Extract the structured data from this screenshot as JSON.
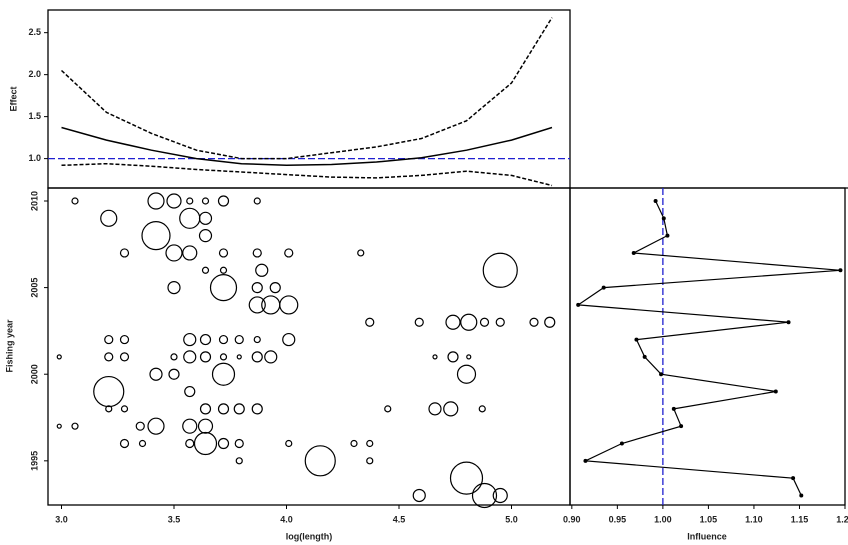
{
  "chart_data": [
    {
      "type": "line",
      "ylabel": "Effect",
      "x": [
        3.0,
        3.2,
        3.4,
        3.6,
        3.8,
        4.0,
        4.2,
        4.4,
        4.6,
        4.8,
        5.0,
        5.18
      ],
      "series": [
        {
          "color": "#000000",
          "dash": false,
          "values": [
            1.37,
            1.22,
            1.1,
            1.0,
            0.94,
            0.92,
            0.93,
            0.96,
            1.01,
            1.1,
            1.22,
            1.37
          ]
        },
        {
          "color": "#000000",
          "dash": true,
          "values": [
            2.05,
            1.55,
            1.3,
            1.1,
            1.0,
            1.0,
            1.07,
            1.14,
            1.24,
            1.45,
            1.9,
            2.68
          ]
        },
        {
          "color": "#000000",
          "dash": true,
          "values": [
            0.92,
            0.94,
            0.91,
            0.87,
            0.84,
            0.81,
            0.78,
            0.77,
            0.8,
            0.85,
            0.8,
            0.68
          ]
        }
      ],
      "hline": {
        "value": 1,
        "color": "#1f1fd0"
      },
      "xlim": [
        2.94,
        5.26
      ],
      "ylim": [
        0.65,
        2.77
      ],
      "yticks": [
        {
          "value": 1,
          "label": "1.0"
        },
        1.5,
        {
          "value": 2,
          "label": "2.0"
        },
        2.5
      ]
    },
    {
      "type": "bubble",
      "xlabel": "log(length)",
      "ylabel": "Fishing year",
      "x": [
        3.06,
        3.42,
        3.5,
        3.57,
        3.64,
        3.72,
        3.87,
        3.21,
        3.57,
        3.64,
        3.42,
        3.64,
        3.28,
        3.5,
        3.57,
        3.72,
        3.87,
        4.01,
        4.33,
        3.64,
        3.72,
        3.89,
        4.95,
        3.5,
        3.72,
        3.87,
        3.95,
        3.87,
        3.93,
        4.01,
        4.37,
        4.59,
        4.74,
        4.81,
        4.88,
        4.95,
        5.1,
        5.17,
        3.21,
        3.28,
        3.57,
        3.64,
        3.72,
        3.79,
        3.87,
        4.01,
        2.99,
        3.21,
        3.28,
        3.5,
        3.57,
        3.64,
        3.72,
        3.79,
        3.87,
        3.93,
        4.66,
        4.74,
        4.81,
        3.42,
        3.5,
        3.72,
        4.8,
        3.21,
        3.57,
        3.21,
        3.28,
        3.64,
        3.72,
        3.79,
        3.87,
        4.45,
        4.66,
        4.73,
        4.87,
        2.99,
        3.06,
        3.35,
        3.42,
        3.57,
        3.64,
        3.28,
        3.36,
        3.57,
        3.64,
        3.72,
        3.79,
        4.01,
        4.3,
        4.37,
        3.79,
        4.15,
        4.37,
        4.8,
        4.59,
        4.88,
        4.95
      ],
      "y": [
        2010,
        2010,
        2010,
        2010,
        2010,
        2010,
        2010,
        2009,
        2009,
        2009,
        2008,
        2008,
        2007,
        2007,
        2007,
        2007,
        2007,
        2007,
        2007,
        2006,
        2006,
        2006,
        2006,
        2005,
        2005,
        2005,
        2005,
        2004,
        2004,
        2004,
        2003,
        2003,
        2003,
        2003,
        2003,
        2003,
        2003,
        2003,
        2002,
        2002,
        2002,
        2002,
        2002,
        2002,
        2002,
        2002,
        2001,
        2001,
        2001,
        2001,
        2001,
        2001,
        2001,
        2001,
        2001,
        2001,
        2001,
        2001,
        2001,
        2000,
        2000,
        2000,
        2000,
        1999,
        1999,
        1998,
        1998,
        1998,
        1998,
        1998,
        1998,
        1998,
        1998,
        1998,
        1998,
        1997,
        1997,
        1997,
        1997,
        1997,
        1997,
        1996,
        1996,
        1996,
        1996,
        1996,
        1996,
        1996,
        1996,
        1996,
        1995,
        1995,
        1995,
        1994,
        1993,
        1993,
        1993
      ],
      "sizes": [
        3,
        8,
        7,
        3,
        3,
        5,
        3,
        8,
        10,
        6,
        14,
        6,
        4,
        8,
        7,
        4,
        4,
        4,
        3,
        3,
        3,
        6,
        17,
        6,
        13,
        5,
        5,
        8,
        9,
        9,
        4,
        4,
        7,
        8,
        4,
        4,
        4,
        5,
        4,
        4,
        6,
        5,
        4,
        4,
        3,
        6,
        2,
        4,
        4,
        3,
        6,
        5,
        3,
        2,
        5,
        6,
        2,
        5,
        2,
        6,
        5,
        11,
        9,
        15,
        5,
        3,
        3,
        5,
        5,
        5,
        5,
        3,
        6,
        7,
        3,
        2,
        3,
        4,
        8,
        7,
        7,
        4,
        3,
        4,
        11,
        5,
        4,
        3,
        3,
        3,
        3,
        15,
        3,
        16,
        6,
        12,
        7
      ],
      "xlim": [
        2.94,
        5.26
      ],
      "ylim": [
        1992.45,
        2010.75
      ],
      "xticks": [
        {
          "value": 3,
          "label": "3.0"
        },
        3.5,
        {
          "value": 4,
          "label": "4.0"
        },
        4.5,
        {
          "value": 5,
          "label": "5.0"
        }
      ],
      "yticks": [
        1995,
        2000,
        2005,
        2010
      ]
    },
    {
      "type": "influence",
      "xlabel": "Influence",
      "y": [
        2010,
        2009,
        2008,
        2007,
        2006,
        2005,
        2004,
        2003,
        2002,
        2001,
        2000,
        1999,
        1998,
        1997,
        1996,
        1995,
        1994,
        1993
      ],
      "values": [
        0.992,
        1.001,
        1.005,
        0.968,
        1.195,
        0.935,
        0.907,
        1.138,
        0.971,
        0.98,
        0.998,
        1.124,
        1.012,
        1.02,
        0.955,
        0.915,
        1.143,
        1.152
      ],
      "vline": {
        "value": 1,
        "color": "#1f1fd0"
      },
      "xlim": [
        0.898,
        1.2
      ],
      "ylim": [
        1992.45,
        2010.75
      ],
      "xticks": [
        {
          "value": 0.9,
          "label": "0.90"
        },
        {
          "value": 0.95,
          "label": "0.95"
        },
        {
          "value": 1,
          "label": "1.00"
        },
        {
          "value": 1.05,
          "label": "1.05"
        },
        {
          "value": 1.1,
          "label": "1.10"
        },
        {
          "value": 1.15,
          "label": "1.15"
        },
        {
          "value": 1.2,
          "label": "1.20"
        }
      ]
    }
  ]
}
